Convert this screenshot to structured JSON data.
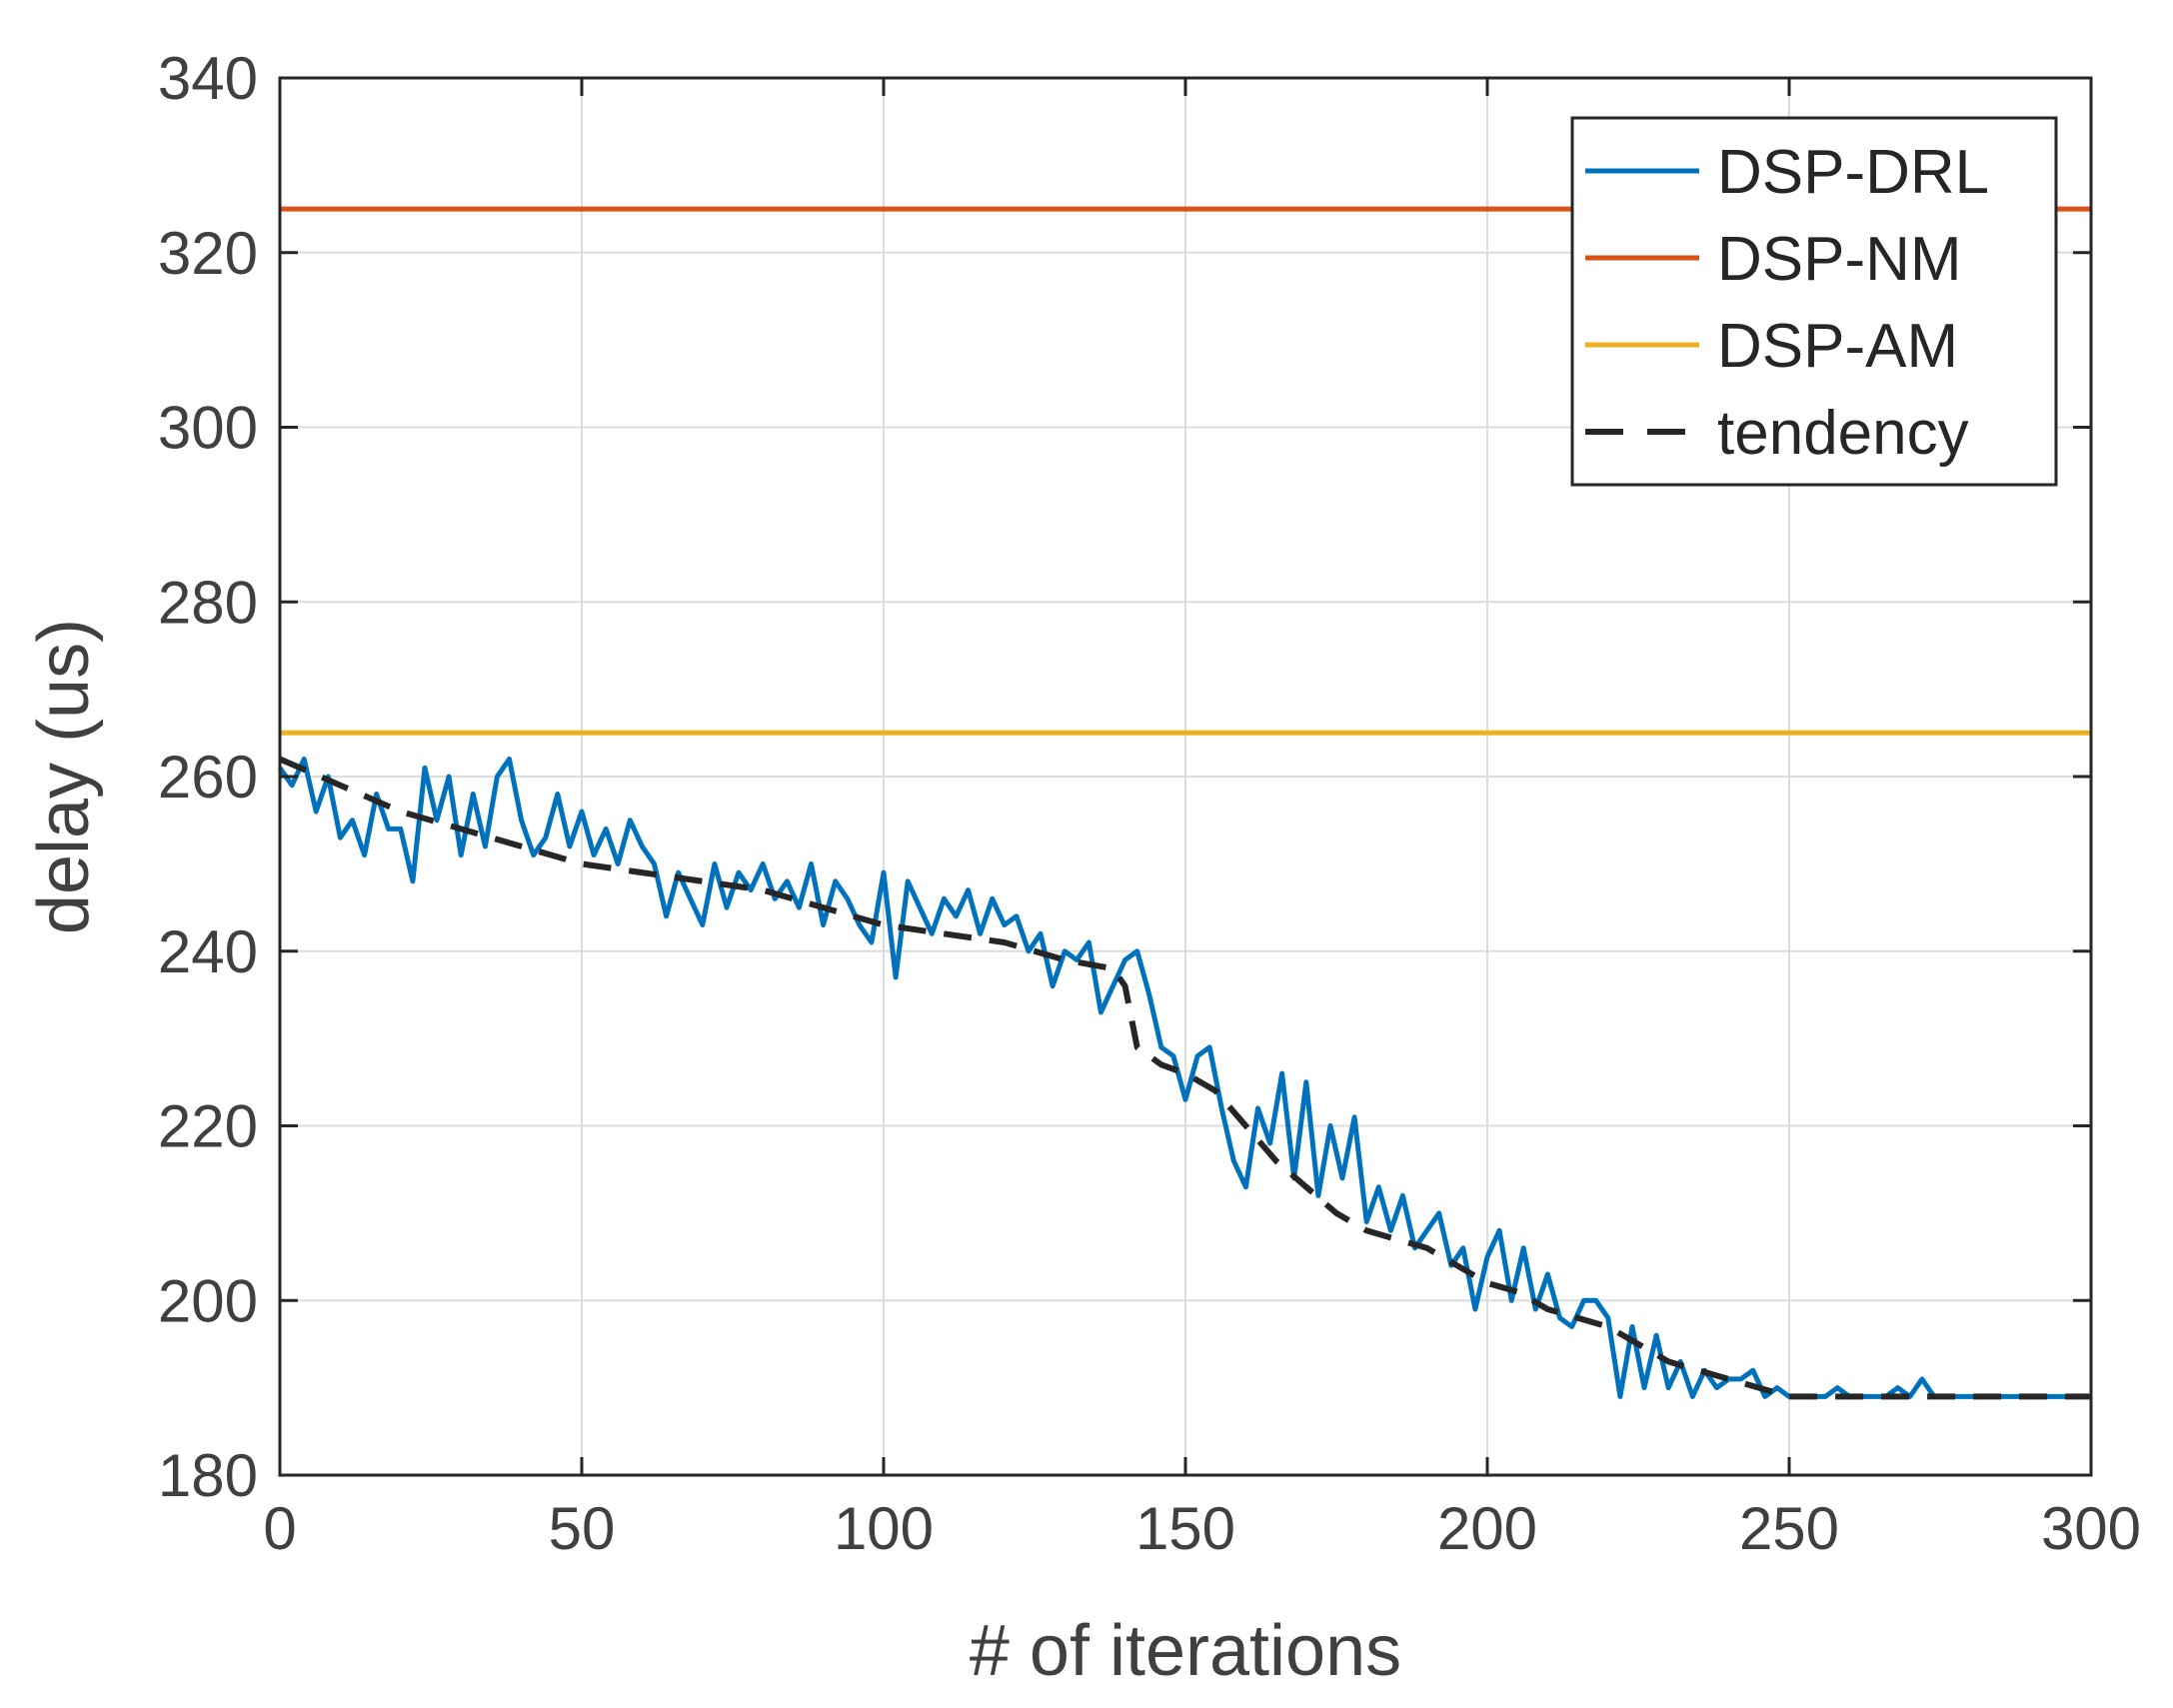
{
  "chart_data": {
    "type": "line",
    "xlabel": "# of iterations",
    "ylabel": "delay (us)",
    "xlim": [
      0,
      300
    ],
    "ylim": [
      180,
      340
    ],
    "xticks": [
      0,
      50,
      100,
      150,
      200,
      250,
      300
    ],
    "yticks": [
      180,
      200,
      220,
      240,
      260,
      280,
      300,
      320,
      340
    ],
    "grid": true,
    "legend_position": "top-right",
    "series": [
      {
        "name": "DSP-DRL",
        "color": "#0072BD",
        "style": "solid",
        "x": [
          0,
          2,
          4,
          6,
          8,
          10,
          12,
          14,
          16,
          18,
          20,
          22,
          24,
          26,
          28,
          30,
          32,
          34,
          36,
          38,
          40,
          42,
          44,
          46,
          48,
          50,
          52,
          54,
          56,
          58,
          60,
          62,
          64,
          66,
          68,
          70,
          72,
          74,
          76,
          78,
          80,
          82,
          84,
          86,
          88,
          90,
          92,
          94,
          96,
          98,
          100,
          102,
          104,
          106,
          108,
          110,
          112,
          114,
          116,
          118,
          120,
          122,
          124,
          126,
          128,
          130,
          132,
          134,
          136,
          138,
          140,
          142,
          144,
          146,
          148,
          150,
          152,
          154,
          156,
          158,
          160,
          162,
          164,
          166,
          168,
          170,
          172,
          174,
          176,
          178,
          180,
          182,
          184,
          186,
          188,
          190,
          192,
          194,
          196,
          198,
          200,
          202,
          204,
          206,
          208,
          210,
          212,
          214,
          216,
          218,
          220,
          222,
          224,
          226,
          228,
          230,
          232,
          234,
          236,
          238,
          240,
          242,
          244,
          246,
          248,
          250,
          252,
          254,
          256,
          258,
          260,
          262,
          264,
          266,
          268,
          270,
          272,
          274,
          276,
          278,
          280,
          285,
          290,
          295,
          300
        ],
        "y": [
          261,
          259,
          262,
          256,
          260,
          253,
          255,
          251,
          258,
          254,
          254,
          248,
          261,
          255,
          260,
          251,
          258,
          252,
          260,
          262,
          255,
          251,
          253,
          258,
          252,
          256,
          251,
          254,
          250,
          255,
          252,
          250,
          244,
          249,
          246,
          243,
          250,
          245,
          249,
          247,
          250,
          246,
          248,
          245,
          250,
          243,
          248,
          246,
          243,
          241,
          249,
          237,
          248,
          245,
          242,
          246,
          244,
          247,
          242,
          246,
          243,
          244,
          240,
          242,
          236,
          240,
          239,
          241,
          233,
          236,
          239,
          240,
          235,
          229,
          228,
          223,
          228,
          229,
          222,
          216,
          213,
          222,
          218,
          226,
          214,
          225,
          212,
          220,
          214,
          221,
          209,
          213,
          208,
          212,
          206,
          208,
          210,
          204,
          206,
          199,
          205,
          208,
          200,
          206,
          199,
          203,
          198,
          197,
          200,
          200,
          198,
          189,
          197,
          190,
          196,
          190,
          193,
          189,
          192,
          190,
          191,
          191,
          192,
          189,
          190,
          189,
          189,
          189,
          189,
          190,
          189,
          189,
          189,
          189,
          190,
          189,
          191,
          189,
          189,
          189,
          189,
          189,
          189,
          189,
          189
        ],
        "values": [
          261,
          259,
          262,
          256,
          260,
          253,
          255,
          251,
          258,
          254,
          254,
          248,
          261,
          255,
          260,
          251,
          258,
          252,
          260,
          262,
          255,
          251,
          253,
          258,
          252,
          256,
          251,
          254,
          250,
          255,
          252,
          250,
          244,
          249,
          246,
          243,
          250,
          245,
          249,
          247,
          250,
          246,
          248,
          245,
          250,
          243,
          248,
          246,
          243,
          241,
          249,
          237,
          248,
          245,
          242,
          246,
          244,
          247,
          242,
          246,
          243,
          244,
          240,
          242,
          236,
          240,
          239,
          241,
          233,
          236,
          239,
          240,
          235,
          229,
          228,
          223,
          228,
          229,
          222,
          216,
          213,
          222,
          218,
          226,
          214,
          225,
          212,
          220,
          214,
          221,
          209,
          213,
          208,
          212,
          206,
          208,
          210,
          204,
          206,
          199,
          205,
          208,
          200,
          206,
          199,
          203,
          198,
          197,
          200,
          200,
          198,
          189,
          197,
          190,
          196,
          190,
          193,
          189,
          192,
          190,
          191,
          191,
          192,
          189,
          190,
          189,
          189,
          189,
          189,
          190,
          189,
          189,
          189,
          189,
          190,
          189,
          191,
          189,
          189,
          189,
          189,
          189,
          189,
          189,
          189
        ]
      },
      {
        "name": "DSP-NM",
        "color": "#D95319",
        "style": "solid",
        "x": [
          0,
          300
        ],
        "y": [
          325,
          325
        ],
        "values": [
          325,
          325
        ]
      },
      {
        "name": "DSP-AM",
        "color": "#EDB120",
        "style": "solid",
        "x": [
          0,
          300
        ],
        "y": [
          265,
          265
        ],
        "values": [
          265,
          265
        ]
      },
      {
        "name": "tendency",
        "color": "#262626",
        "style": "dashed",
        "x": [
          0,
          10,
          20,
          30,
          40,
          50,
          60,
          70,
          80,
          90,
          100,
          110,
          120,
          130,
          138,
          140,
          142,
          146,
          150,
          155,
          160,
          165,
          170,
          175,
          180,
          185,
          190,
          195,
          200,
          205,
          210,
          215,
          220,
          225,
          230,
          235,
          240,
          245,
          250,
          255,
          260,
          270,
          280,
          290,
          300
        ],
        "y": [
          262,
          259,
          256,
          254,
          252,
          250,
          249,
          248,
          247,
          245,
          243,
          242,
          241,
          239,
          238,
          236,
          229,
          227,
          226,
          224,
          220,
          216,
          213,
          210,
          208,
          207,
          206,
          204,
          202,
          201,
          199,
          198,
          197,
          195,
          193,
          192,
          191,
          190,
          189,
          189,
          189,
          189,
          189,
          189,
          189
        ],
        "values": [
          262,
          259,
          256,
          254,
          252,
          250,
          249,
          248,
          247,
          245,
          243,
          242,
          241,
          239,
          238,
          236,
          229,
          227,
          226,
          224,
          220,
          216,
          213,
          210,
          208,
          207,
          206,
          204,
          202,
          201,
          199,
          198,
          197,
          195,
          193,
          192,
          191,
          190,
          189,
          189,
          189,
          189,
          189,
          189,
          189
        ]
      }
    ]
  }
}
